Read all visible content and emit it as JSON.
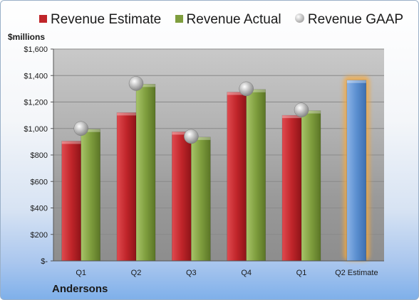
{
  "chart_data": {
    "type": "bar",
    "ylabel": "$millions",
    "company": "Andersons",
    "categories": [
      "Q1",
      "Q2",
      "Q3",
      "Q4",
      "Q1",
      "Q2 Estimate"
    ],
    "ylim": [
      0,
      1600
    ],
    "yticks": [
      0,
      200,
      400,
      600,
      800,
      1000,
      1200,
      1400,
      1600
    ],
    "ytick_labels": [
      "$-",
      "$200",
      "$400",
      "$600",
      "$800",
      "$1,000",
      "$1,200",
      "$1,400",
      "$1,600"
    ],
    "grid": true,
    "legend_position": "top",
    "series": [
      {
        "name": "Revenue Estimate",
        "type": "bar",
        "color": "#c0252a",
        "values": [
          905,
          1120,
          975,
          1275,
          1100,
          null
        ]
      },
      {
        "name": "Revenue Actual",
        "type": "bar",
        "color": "#7f9e3e",
        "values": [
          995,
          1335,
          935,
          1295,
          1135,
          null
        ]
      },
      {
        "name": "Revenue GAAP",
        "type": "scatter",
        "color": "#b8b8b8",
        "values": [
          1000,
          1340,
          940,
          1300,
          1140,
          null
        ]
      },
      {
        "type": "bar",
        "color": "#5b8fd0",
        "values": [
          null,
          null,
          null,
          null,
          null,
          1365
        ]
      }
    ]
  }
}
